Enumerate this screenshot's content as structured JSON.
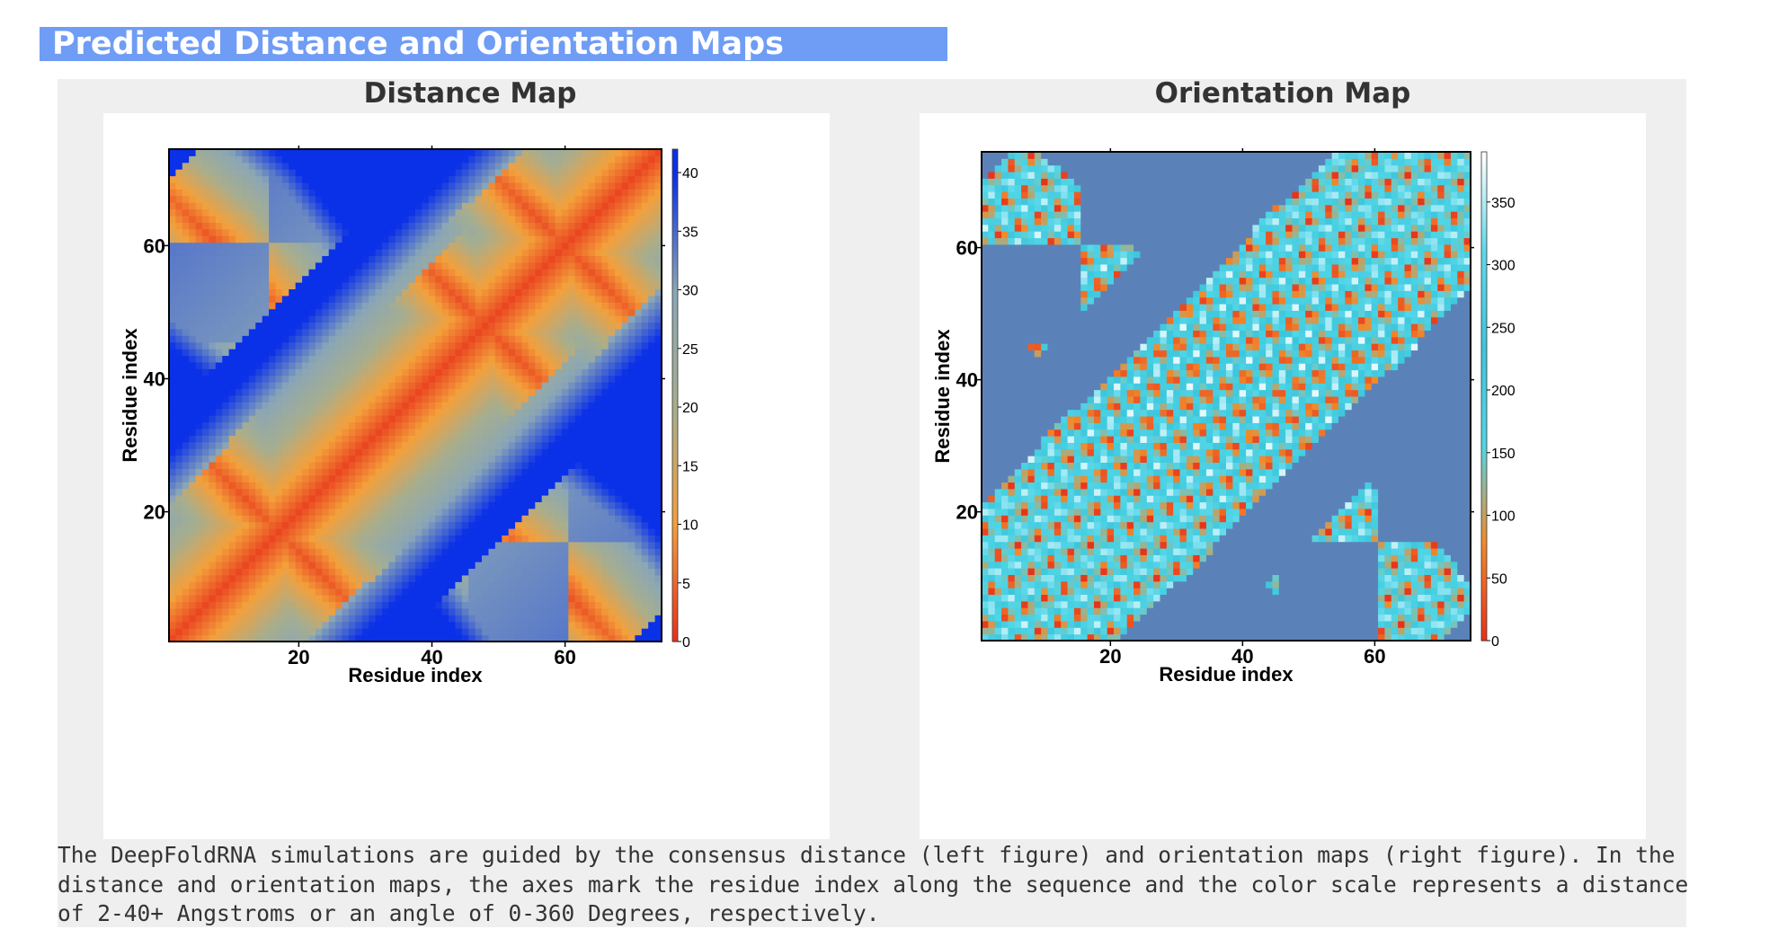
{
  "header": {
    "title": "Predicted Distance and Orientation Maps"
  },
  "caption": "The DeepFoldRNA simulations are guided by the consensus distance (left figure) and orientation maps (right figure). In the distance and orientation maps, the axes mark the residue index along the sequence and the color scale represents a distance of 2-40+ Angstroms or an angle of 0-360 Degrees, respectively.",
  "chart_data": [
    {
      "type": "heatmap",
      "title": "Distance Map",
      "xlabel": "Residue index",
      "ylabel": "Residue index",
      "n_residues": 74,
      "xlim": [
        1,
        74
      ],
      "ylim": [
        1,
        74
      ],
      "x_ticks": [
        20,
        40,
        60
      ],
      "y_ticks": [
        20,
        40,
        60
      ],
      "x_tick_labels": [
        "20",
        "40",
        "60"
      ],
      "y_tick_labels": [
        "20",
        "40",
        "60"
      ],
      "colorbar": {
        "min": 0,
        "max": 42,
        "ticks": [
          0,
          5,
          10,
          15,
          20,
          25,
          30,
          35,
          40
        ],
        "tick_labels": [
          "0",
          "5",
          "10",
          "15",
          "20",
          "25",
          "30",
          "35",
          "40"
        ],
        "colors": [
          "#e8311b",
          "#f3a03b",
          "#a7ae8e",
          "#8aa6b6",
          "#0a30e8",
          "#0a2fd8"
        ]
      },
      "features": {
        "main_diagonal": "low distance (red) along i = j",
        "anti_diagonal_helices": [
          {
            "center": [
              8,
              57
            ],
            "note": "stem between residues ~2-15 and ~52-70"
          },
          {
            "center": [
              57,
              8
            ],
            "note": "symmetric"
          },
          {
            "center": [
              63,
              53
            ],
            "note": "stem near residues 47-70"
          },
          {
            "center": [
              12,
              22
            ],
            "note": "stem near residues 2-25"
          }
        ],
        "far_regions_blue": "distances >= 40 in off-diagonal blocks"
      }
    },
    {
      "type": "heatmap",
      "title": "Orientation Map",
      "xlabel": "Residue index",
      "ylabel": "Residue index",
      "n_residues": 74,
      "xlim": [
        1,
        74
      ],
      "ylim": [
        1,
        74
      ],
      "x_ticks": [
        20,
        40,
        60
      ],
      "y_ticks": [
        20,
        40,
        60
      ],
      "x_tick_labels": [
        "20",
        "40",
        "60"
      ],
      "y_tick_labels": [
        "20",
        "40",
        "60"
      ],
      "colorbar": {
        "min": 0,
        "max": 390,
        "ticks": [
          0,
          50,
          100,
          150,
          200,
          250,
          300,
          350
        ],
        "tick_labels": [
          "0",
          "50",
          "100",
          "150",
          "200",
          "250",
          "300",
          "350"
        ],
        "colors": [
          "#e8311b",
          "#f28a2b",
          "#50d6e6",
          "#3cc6dc",
          "#5ed8ea",
          "#ffffff"
        ]
      },
      "background_color": "#5b82b8",
      "features": {
        "undefined_regions": "uniform steel-blue where distance is large",
        "patterned_blocks": "alternating cyan / orange / red angle bands"
      }
    }
  ]
}
